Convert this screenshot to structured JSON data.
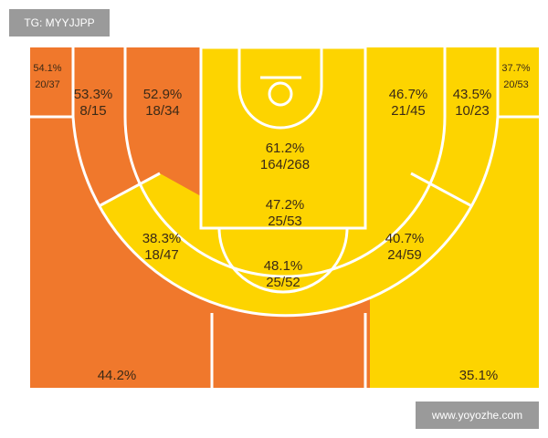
{
  "watermark_top": "TG: MYYJJPP",
  "watermark_bottom": "www.yoyozhe.com",
  "zones": [
    {
      "pct": "54.1%",
      "shots": "20/37"
    },
    {
      "pct": "53.3%",
      "shots": "8/15"
    },
    {
      "pct": "52.9%",
      "shots": "18/34"
    },
    {
      "pct": "61.2%",
      "shots": "164/268"
    },
    {
      "pct": "47.2%",
      "shots": "25/53"
    },
    {
      "pct": "46.7%",
      "shots": "21/45"
    },
    {
      "pct": "43.5%",
      "shots": "10/23"
    },
    {
      "pct": "37.7%",
      "shots": "20/53"
    },
    {
      "pct": "38.3%",
      "shots": "18/47"
    },
    {
      "pct": "40.7%",
      "shots": "24/59"
    },
    {
      "pct": "48.1%",
      "shots": "25/52"
    },
    {
      "pct": "44.2%"
    },
    {
      "pct": "35.1%"
    }
  ]
}
